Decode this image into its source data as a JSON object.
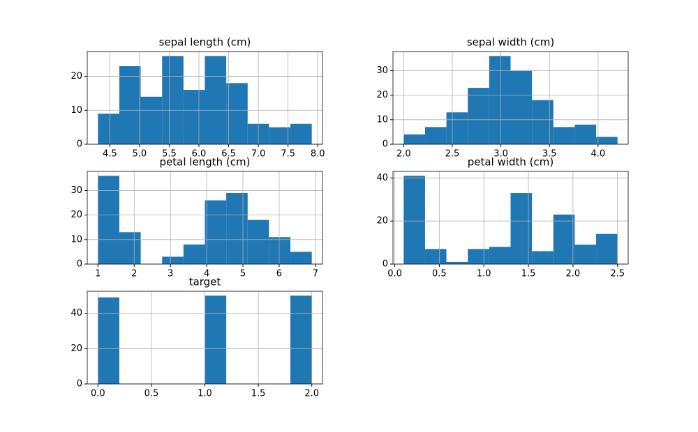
{
  "chart_data": [
    {
      "type": "histogram",
      "title": "sepal length (cm)",
      "color": "#1f77b4",
      "grid": true,
      "bins": [
        4.3,
        4.66,
        5.02,
        5.38,
        5.74,
        6.1,
        6.46,
        6.82,
        7.18,
        7.54,
        7.9
      ],
      "values": [
        9,
        23,
        14,
        26,
        16,
        26,
        18,
        6,
        5,
        6
      ],
      "xlim": [
        4.12,
        8.08
      ],
      "ylim": [
        0,
        27.3
      ],
      "xticks": [
        4.5,
        {
          "value": 5,
          "label": "5.0"
        },
        5.5,
        {
          "value": 6,
          "label": "6.0"
        },
        6.5,
        {
          "value": 7,
          "label": "7.0"
        },
        7.5,
        {
          "value": 8,
          "label": "8.0"
        }
      ],
      "yticks": [
        0,
        10,
        20
      ]
    },
    {
      "type": "histogram",
      "title": "sepal width (cm)",
      "color": "#1f77b4",
      "grid": true,
      "bins": [
        2.0,
        2.22,
        2.44,
        2.66,
        2.88,
        3.1,
        3.32,
        3.54,
        3.76,
        3.98,
        4.2
      ],
      "values": [
        4,
        7,
        13,
        23,
        36,
        30,
        18,
        7,
        8,
        3
      ],
      "xlim": [
        1.89,
        4.31
      ],
      "ylim": [
        0,
        37.8
      ],
      "xticks": [
        {
          "value": 2,
          "label": "2.0"
        },
        2.5,
        {
          "value": 3,
          "label": "3.0"
        },
        3.5,
        {
          "value": 4,
          "label": "4.0"
        }
      ],
      "yticks": [
        0,
        10,
        20,
        30
      ]
    },
    {
      "type": "histogram",
      "title": "petal length (cm)",
      "color": "#1f77b4",
      "grid": true,
      "bins": [
        1.0,
        1.59,
        2.18,
        2.77,
        3.36,
        3.95,
        4.54,
        5.13,
        5.72,
        6.31,
        6.9
      ],
      "values": [
        36,
        13,
        0,
        3,
        8,
        26,
        29,
        18,
        11,
        5
      ],
      "xlim": [
        0.705,
        7.195
      ],
      "ylim": [
        0,
        37.8
      ],
      "xticks": [
        1,
        2,
        3,
        4,
        5,
        6,
        7
      ],
      "yticks": [
        0,
        10,
        20,
        30
      ]
    },
    {
      "type": "histogram",
      "title": "petal width (cm)",
      "color": "#1f77b4",
      "grid": true,
      "bins": [
        0.1,
        0.34,
        0.58,
        0.82,
        1.06,
        1.3,
        1.54,
        1.78,
        2.02,
        2.26,
        2.5
      ],
      "values": [
        41,
        7,
        1,
        7,
        8,
        33,
        6,
        23,
        9,
        14
      ],
      "xlim": [
        -0.02,
        2.62
      ],
      "ylim": [
        0,
        43.05
      ],
      "xticks": [
        {
          "value": 0,
          "label": "0.0"
        },
        0.5,
        {
          "value": 1,
          "label": "1.0"
        },
        1.5,
        {
          "value": 2,
          "label": "2.0"
        },
        2.5
      ],
      "yticks": [
        0,
        20,
        40
      ]
    },
    {
      "type": "histogram",
      "title": "target",
      "color": "#1f77b4",
      "grid": true,
      "bins": [
        0.0,
        0.2,
        0.4,
        0.6,
        0.8,
        1.0,
        1.2,
        1.4,
        1.6,
        1.8,
        2.0
      ],
      "values": [
        49,
        0,
        0,
        0,
        0,
        50,
        0,
        0,
        0,
        50
      ],
      "xlim": [
        -0.1,
        2.1
      ],
      "ylim": [
        0,
        52.5
      ],
      "xticks": [
        {
          "value": 0,
          "label": "0.0"
        },
        0.5,
        {
          "value": 1,
          "label": "1.0"
        },
        1.5,
        {
          "value": 2,
          "label": "2.0"
        }
      ],
      "yticks": [
        0,
        20,
        40
      ]
    }
  ]
}
